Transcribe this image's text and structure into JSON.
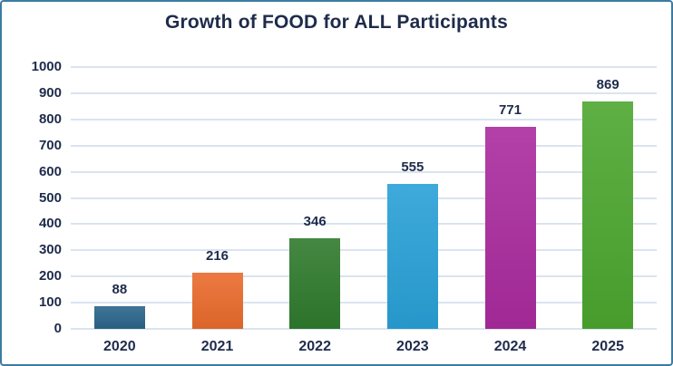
{
  "chart_data": {
    "type": "bar",
    "title": "Growth of FOOD for ALL Participants",
    "categories": [
      "2020",
      "2021",
      "2022",
      "2023",
      "2024",
      "2025"
    ],
    "values": [
      88,
      216,
      346,
      555,
      771,
      869
    ],
    "bar_colors": [
      "#2a6589",
      "#e96b2c",
      "#2f7a2d",
      "#29a0d7",
      "#aa2b9e",
      "#4ca62f"
    ],
    "yticks": [
      0,
      100,
      200,
      300,
      400,
      500,
      600,
      700,
      800,
      900,
      1000
    ],
    "ylim": [
      0,
      1000
    ],
    "xlabel": "",
    "ylabel": "",
    "grid": true,
    "legend": false
  },
  "colors": {
    "frame_border": "#3c7ca0",
    "title_text": "#1e2b4b",
    "axis_text": "#1e2b4b",
    "gridline": "#dae4f0",
    "background": "#ffffff"
  }
}
